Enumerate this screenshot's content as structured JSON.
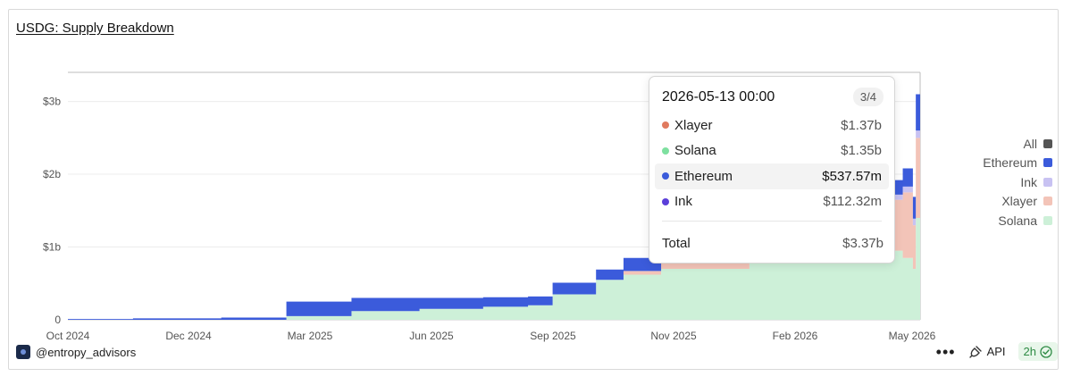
{
  "title": "USDG: Supply Breakdown",
  "chart_data": {
    "type": "area",
    "title": "USDG: Supply Breakdown",
    "x_ticks": [
      "Oct 2024",
      "Dec 2024",
      "Mar 2025",
      "Jun 2025",
      "Sep 2025",
      "Nov 2025",
      "Feb 2026",
      "May 2026"
    ],
    "y_ticks": [
      "0",
      "$1b",
      "$2b",
      "$3b"
    ],
    "y_tick_values": [
      0,
      1,
      2,
      3
    ],
    "ylim": [
      0,
      3.4
    ],
    "xlim": [
      "2024-10-01",
      "2026-05-13"
    ],
    "y_unit": "billions USD",
    "grid": true,
    "legend_position": "right",
    "series_colors": {
      "Ethereum": "#3b5bdb",
      "Ink": "#c8c2f2",
      "Xlayer": "#f3c4b8",
      "Solana": "#cdf0d8"
    },
    "x": [
      "2024-10-01",
      "2024-11-15",
      "2025-01-15",
      "2025-03-01",
      "2025-04-15",
      "2025-06-01",
      "2025-07-15",
      "2025-08-15",
      "2025-09-01",
      "2025-10-01",
      "2025-10-20",
      "2025-11-15",
      "2026-01-15",
      "2026-03-01",
      "2026-04-01",
      "2026-04-20",
      "2026-05-01",
      "2026-05-08",
      "2026-05-10",
      "2026-05-13"
    ],
    "series": [
      {
        "name": "Solana",
        "values": [
          0,
          0,
          0,
          0.05,
          0.12,
          0.15,
          0.18,
          0.2,
          0.35,
          0.55,
          0.62,
          0.7,
          0.78,
          0.85,
          0.9,
          0.95,
          0.85,
          0.7,
          1.4,
          1.35
        ]
      },
      {
        "name": "Xlayer",
        "values": [
          0,
          0,
          0,
          0,
          0,
          0,
          0,
          0,
          0,
          0,
          0.05,
          0.1,
          0.2,
          0.3,
          0.5,
          0.7,
          0.9,
          0.6,
          1.1,
          1.37
        ]
      },
      {
        "name": "Ink",
        "values": [
          0,
          0,
          0,
          0,
          0,
          0,
          0,
          0,
          0,
          0,
          0,
          0.02,
          0.03,
          0.05,
          0.06,
          0.07,
          0.08,
          0.09,
          0.1,
          0.11
        ]
      },
      {
        "name": "Ethereum",
        "values": [
          0.01,
          0.02,
          0.03,
          0.2,
          0.18,
          0.15,
          0.13,
          0.12,
          0.16,
          0.14,
          0.18,
          0.18,
          0.17,
          0.2,
          0.2,
          0.2,
          0.25,
          0.3,
          0.5,
          0.54
        ]
      }
    ]
  },
  "legend": [
    {
      "label": "All",
      "color": "#555555"
    },
    {
      "label": "Ethereum",
      "color": "#3b5bdb"
    },
    {
      "label": "Ink",
      "color": "#c8c2f2"
    },
    {
      "label": "Xlayer",
      "color": "#f3c4b8"
    },
    {
      "label": "Solana",
      "color": "#cdf0d8"
    }
  ],
  "tooltip": {
    "date": "2026-05-13 00:00",
    "page": "3/4",
    "rows": [
      {
        "name": "Xlayer",
        "value": "$1.37b",
        "color": "#e07a5f",
        "highlight": false
      },
      {
        "name": "Solana",
        "value": "$1.35b",
        "color": "#7ee0a0",
        "highlight": false
      },
      {
        "name": "Ethereum",
        "value": "$537.57m",
        "color": "#3b5bdb",
        "highlight": true
      },
      {
        "name": "Ink",
        "value": "$112.32m",
        "color": "#5b3fd9",
        "highlight": false
      }
    ],
    "total_label": "Total",
    "total_value": "$3.37b"
  },
  "footer": {
    "brand": "@entropy_advisors",
    "api_label": "API",
    "interval_label": "2h"
  }
}
